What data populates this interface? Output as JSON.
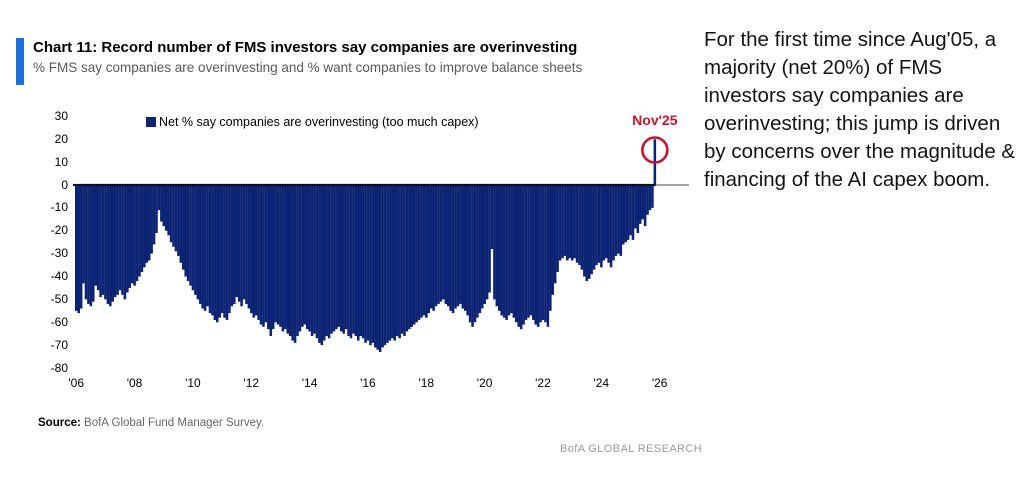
{
  "header": {
    "title": "Chart 11: Record number of FMS investors say companies are overinvesting",
    "subtitle": "% FMS say companies are overinvesting and % want companies to improve balance sheets",
    "accent_color": "#1b6fd6"
  },
  "chart_data": {
    "type": "bar",
    "title": "Net % say companies are overinvesting (too much capex)",
    "legend": [
      {
        "label": "Net % say companies are overinvesting (too much capex)",
        "color": "#0d2373"
      }
    ],
    "x_start": "2006-01",
    "frequency": "monthly",
    "values": [
      -55,
      -56,
      -54,
      -43,
      -50,
      -52,
      -53,
      -51,
      -44,
      -46,
      -49,
      -48,
      -50,
      -52,
      -53,
      -51,
      -49,
      -48,
      -46,
      -48,
      -50,
      -47,
      -45,
      -43,
      -44,
      -42,
      -40,
      -38,
      -36,
      -34,
      -33,
      -30,
      -26,
      -21,
      -11,
      -16,
      -18,
      -20,
      -22,
      -25,
      -27,
      -29,
      -31,
      -34,
      -37,
      -40,
      -42,
      -44,
      -46,
      -48,
      -50,
      -52,
      -54,
      -55,
      -53,
      -56,
      -57,
      -59,
      -60,
      -58,
      -56,
      -58,
      -59,
      -56,
      -53,
      -52,
      -49,
      -51,
      -53,
      -50,
      -52,
      -54,
      -56,
      -58,
      -57,
      -59,
      -61,
      -62,
      -60,
      -63,
      -66,
      -63,
      -60,
      -61,
      -62,
      -64,
      -63,
      -65,
      -66,
      -68,
      -69,
      -66,
      -64,
      -62,
      -61,
      -63,
      -64,
      -66,
      -65,
      -67,
      -69,
      -70,
      -68,
      -66,
      -67,
      -65,
      -64,
      -63,
      -62,
      -64,
      -65,
      -63,
      -66,
      -67,
      -65,
      -66,
      -68,
      -66,
      -67,
      -69,
      -68,
      -70,
      -69,
      -71,
      -72,
      -73,
      -71,
      -70,
      -69,
      -68,
      -67,
      -68,
      -66,
      -67,
      -65,
      -66,
      -64,
      -63,
      -62,
      -61,
      -60,
      -59,
      -58,
      -57,
      -58,
      -56,
      -54,
      -55,
      -53,
      -52,
      -51,
      -50,
      -52,
      -53,
      -55,
      -56,
      -54,
      -53,
      -52,
      -54,
      -55,
      -57,
      -60,
      -62,
      -60,
      -58,
      -56,
      -54,
      -52,
      -50,
      -47,
      -28,
      -50,
      -53,
      -55,
      -57,
      -58,
      -59,
      -57,
      -56,
      -58,
      -60,
      -62,
      -63,
      -61,
      -59,
      -58,
      -57,
      -59,
      -61,
      -62,
      -60,
      -59,
      -60,
      -62,
      -55,
      -48,
      -43,
      -38,
      -33,
      -32,
      -31,
      -33,
      -32,
      -33,
      -32,
      -34,
      -35,
      -37,
      -40,
      -42,
      -41,
      -39,
      -37,
      -35,
      -34,
      -36,
      -33,
      -32,
      -34,
      -36,
      -33,
      -31,
      -30,
      -31,
      -26,
      -25,
      -24,
      -22,
      -24,
      -19,
      -21,
      -17,
      -15,
      -18,
      -13,
      -11,
      -10,
      20
    ],
    "ylim": [
      -80,
      30
    ],
    "yticks": [
      30,
      20,
      10,
      0,
      -10,
      -20,
      -30,
      -40,
      -50,
      -60,
      -70,
      -80
    ],
    "xticks": [
      {
        "label": "'06",
        "year": 2006
      },
      {
        "label": "'08",
        "year": 2008
      },
      {
        "label": "'10",
        "year": 2010
      },
      {
        "label": "'12",
        "year": 2012
      },
      {
        "label": "'14",
        "year": 2014
      },
      {
        "label": "'16",
        "year": 2016
      },
      {
        "label": "'18",
        "year": 2018
      },
      {
        "label": "'20",
        "year": 2020
      },
      {
        "label": "'22",
        "year": 2022
      },
      {
        "label": "'24",
        "year": 2024
      },
      {
        "label": "'26",
        "year": 2026
      }
    ],
    "annotation": {
      "label": "Nov'25",
      "month": "2025-11",
      "value": 20,
      "color": "#c6152f"
    },
    "bar_color": "#0d2373",
    "zero_line_color": "#0a0f28",
    "axis_line_color": "#8c8c8c",
    "grid": false,
    "legend_position": "top-left"
  },
  "footer": {
    "source_label": "Source:",
    "source_text": " BofA Global Fund Manager Survey.",
    "brand": "BofA GLOBAL RESEARCH"
  },
  "commentary": {
    "text": "For the first time since Aug'05, a majority (net 20%) of FMS investors say companies are overinvesting; this jump is driven by concerns over the magnitude & financing of the AI capex boom."
  }
}
